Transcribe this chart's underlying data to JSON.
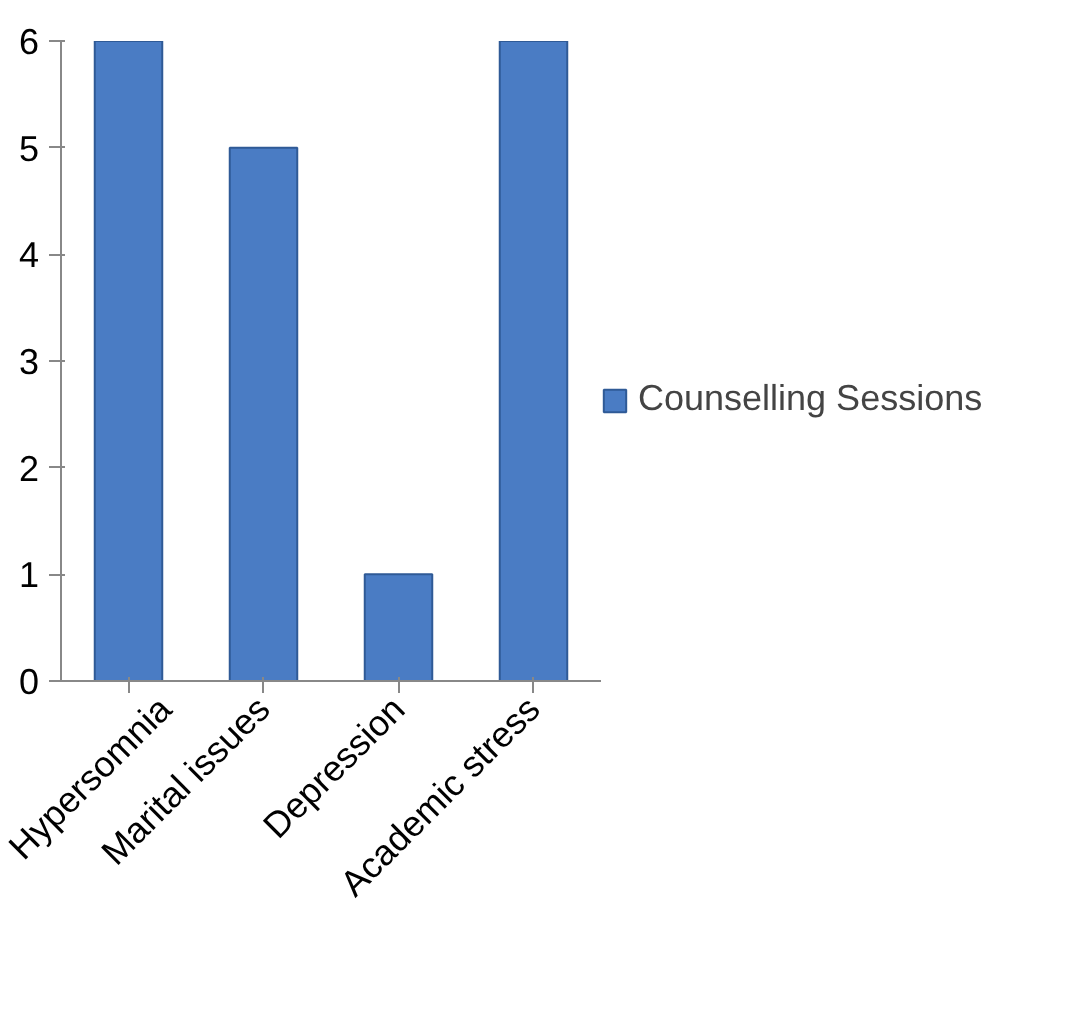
{
  "chart_data": {
    "type": "bar",
    "categories": [
      "Hypersomnia",
      "Marital issues",
      "Depression",
      "Academic stress"
    ],
    "series": [
      {
        "name": "Counselling Sessions",
        "color": "#4a7cc4",
        "values": [
          6,
          5,
          1,
          6
        ]
      }
    ],
    "ylim": [
      0,
      6
    ],
    "yticks": [
      0,
      1,
      2,
      3,
      4,
      5,
      6
    ],
    "grid": false,
    "legend": "right"
  }
}
